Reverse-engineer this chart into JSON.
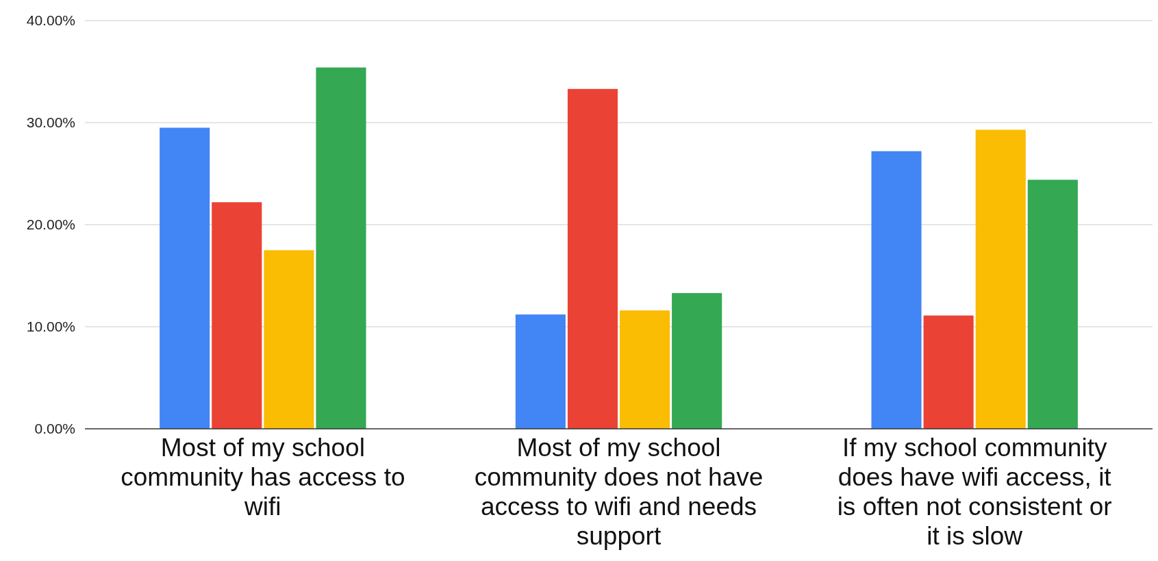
{
  "chart_data": {
    "type": "bar",
    "categories": [
      "Most of my school community has access to wifi",
      "Most of my school community does not have access to wifi and needs support",
      "If my school community does have wifi access, it is often not consistent or it is slow"
    ],
    "series": [
      {
        "color": "#4285f4",
        "values": [
          29.5,
          11.2,
          27.2
        ]
      },
      {
        "color": "#ea4335",
        "values": [
          22.2,
          33.3,
          11.1
        ]
      },
      {
        "color": "#fbbc04",
        "values": [
          17.5,
          11.6,
          29.3
        ]
      },
      {
        "color": "#34a853",
        "values": [
          35.4,
          13.3,
          24.4
        ]
      }
    ],
    "ylim": [
      0,
      40
    ],
    "yticks": [
      {
        "value": 0,
        "label": "0.00%"
      },
      {
        "value": 10,
        "label": "10.00%"
      },
      {
        "value": 20,
        "label": "20.00%"
      },
      {
        "value": 30,
        "label": "30.00%"
      },
      {
        "value": 40,
        "label": "40.00%"
      }
    ],
    "grid": "y"
  }
}
